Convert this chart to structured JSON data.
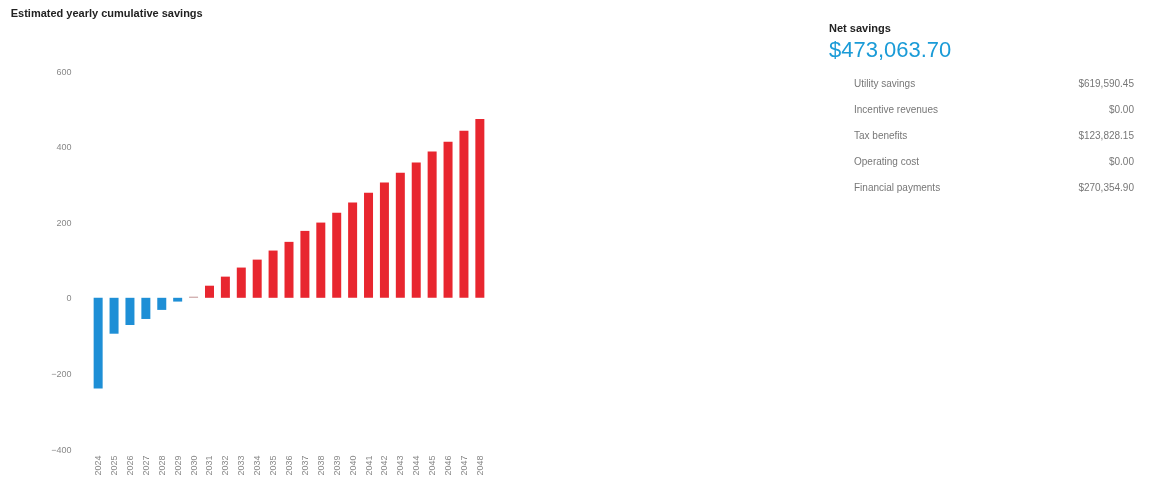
{
  "chart_data": [
    {
      "type": "bar",
      "title": "Estimated yearly cumulative savings",
      "categories": [
        "2024",
        "2025",
        "2026",
        "2027",
        "2028",
        "2029",
        "2030",
        "2031",
        "2032",
        "2033",
        "2034",
        "2035",
        "2036",
        "2037",
        "2038",
        "2039",
        "2040",
        "2041",
        "2042",
        "2043",
        "2044",
        "2045",
        "2046",
        "2047",
        "2048"
      ],
      "values": [
        -240,
        -95,
        -72,
        -56,
        -32,
        -10,
        3,
        32,
        56,
        80,
        101,
        125,
        148,
        177,
        199,
        225,
        252,
        278,
        305,
        331,
        358,
        387,
        413,
        442,
        473
      ],
      "colors": [
        "#1e8fd6",
        "#1e8fd6",
        "#1e8fd6",
        "#1e8fd6",
        "#1e8fd6",
        "#1e8fd6",
        "#c9a0a0",
        "#e8262f",
        "#e8262f",
        "#e8262f",
        "#e8262f",
        "#e8262f",
        "#e8262f",
        "#e8262f",
        "#e8262f",
        "#e8262f",
        "#e8262f",
        "#e8262f",
        "#e8262f",
        "#e8262f",
        "#e8262f",
        "#e8262f",
        "#e8262f",
        "#e8262f",
        "#e8262f"
      ],
      "ylim": [
        -400,
        600
      ],
      "yticks": [
        -400,
        -200,
        0,
        200,
        400,
        600
      ],
      "grid": false,
      "legend": false
    },
    {
      "type": "other",
      "title": "Net savings",
      "subtitle": "$473,063.70",
      "annotations": [
        "Utility savings",
        "$619,590.45",
        "Incentive revenues",
        "$0.00",
        "Tax benefits",
        "$123,828.15",
        "Operating cost",
        "$0.00",
        "Financial payments",
        "$270,354.90"
      ]
    }
  ]
}
